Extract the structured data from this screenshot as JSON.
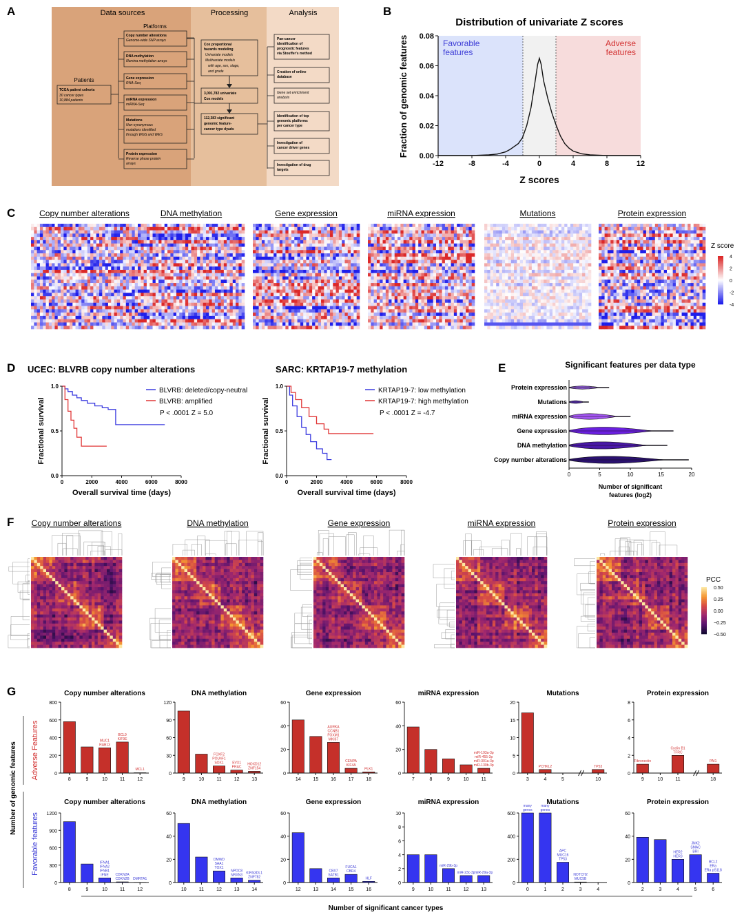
{
  "panel_a": {
    "letter": "A",
    "headers": {
      "data_sources": "Data sources",
      "processing": "Processing",
      "analysis": "Analysis",
      "platforms": "Platforms",
      "patients": "Patients"
    },
    "patients_box": {
      "title": "TCGA patient cohorts",
      "line1": "30 cancer types",
      "line2": "10,884 patients"
    },
    "platforms": [
      {
        "title": "Copy number alterations",
        "sub1": "Genome-wide SNP arrays",
        "sub2": ""
      },
      {
        "title": "DNA methylation",
        "sub1": "Illumina methylation arrays",
        "sub2": ""
      },
      {
        "title": "Gene expression",
        "sub1": "RNA-Seq",
        "sub2": ""
      },
      {
        "title": "miRNA expression",
        "sub1": "miRNA-Seq",
        "sub2": ""
      },
      {
        "title": "Mutations",
        "sub1": "Non-synonymous",
        "sub2": "mutations identified",
        "sub3": "through WGS and WES"
      },
      {
        "title": "Protein expression",
        "sub1": "Reverse phase protein",
        "sub2": "arrays"
      }
    ],
    "processing": {
      "box1": {
        "l1": "Cox proportional",
        "l2": "hazards modeling",
        "l3": "Univariate models",
        "l4": "Multivariate models",
        "l5": "with age, sex, stage,",
        "l6": "and grade"
      },
      "box2": {
        "l1": "3,091,782 univariate",
        "l2": "Cox models"
      },
      "box3": {
        "l1": "112,383 significant",
        "l2": "genomic feature-",
        "l3": "cancer type dyads"
      }
    },
    "analysis": [
      {
        "l1": "Pan-cancer",
        "l2": "identification of",
        "l3": "prognostic features",
        "l4": "via Stouffer's method"
      },
      {
        "l1": "Creation of online",
        "l2": "database"
      },
      {
        "l1": "Gene set enrichment",
        "l2": "analysis"
      },
      {
        "l1": "Identification of top",
        "l2": "genomic platforms",
        "l3": "per cancer type"
      },
      {
        "l1": "Investigation of",
        "l2": "cancer driver genes"
      },
      {
        "l1": "Investigation of drug",
        "l2": "targets"
      }
    ]
  },
  "panel_b": {
    "letter": "B",
    "title": "Distribution of univariate Z scores",
    "xlabel": "Z scores",
    "ylabel": "Fraction of genomic features",
    "favorable": [
      "Favorable",
      "features"
    ],
    "adverse": [
      "Adverse",
      "features"
    ],
    "colors": {
      "favorable_bg": "#dbe3fb",
      "adverse_bg": "#f7dcdc",
      "favorable_text": "#3b3bd6",
      "adverse_text": "#d23030"
    },
    "chart_data": {
      "type": "line",
      "xlim": [
        -12,
        12
      ],
      "ylim": [
        0,
        0.08
      ],
      "xticks": [
        "-12",
        "-8",
        "-4",
        "0",
        "4",
        "8",
        "12"
      ],
      "yticks": [
        "0.00",
        "0.02",
        "0.04",
        "0.06",
        "0.08"
      ],
      "thresholds": [
        -1.96,
        1.96
      ],
      "x": [
        -12,
        -8,
        -6,
        -5,
        -4,
        -3.5,
        -3,
        -2.5,
        -2,
        -1.5,
        -1,
        -0.5,
        -0.2,
        0,
        0.2,
        0.5,
        1,
        1.5,
        2,
        2.5,
        3,
        3.5,
        4,
        5,
        6,
        8,
        12
      ],
      "y": [
        0,
        0,
        0.0005,
        0.001,
        0.0025,
        0.004,
        0.006,
        0.008,
        0.012,
        0.02,
        0.032,
        0.05,
        0.061,
        0.065,
        0.061,
        0.05,
        0.038,
        0.028,
        0.02,
        0.013,
        0.008,
        0.005,
        0.003,
        0.0012,
        0.0005,
        0,
        0
      ]
    }
  },
  "panel_c": {
    "letter": "C",
    "titles": [
      "Copy number alterations",
      "DNA methylation",
      "Gene expression",
      "miRNA expression",
      "Mutations",
      "Protein expression"
    ],
    "legend_title": "Z score",
    "legend_ticks": [
      "4",
      "2",
      "0",
      "-2",
      "-4"
    ]
  },
  "panel_d": {
    "letter": "D",
    "plots": [
      {
        "title": "UCEC: BLVRB copy number alterations",
        "legend": [
          "BLVRB: deleted/copy-neutral",
          "BLVRB: amplified"
        ],
        "stats": "P < .0001      Z = 5.0",
        "chart_data": {
          "type": "line",
          "xlim": [
            0,
            8000
          ],
          "ylim": [
            0,
            1
          ],
          "xticks": [
            "0",
            "2000",
            "4000",
            "6000",
            "8000"
          ],
          "yticks": [
            "0.0",
            "0.5",
            "1.0"
          ],
          "series": [
            {
              "name": "BLVRB: deleted/copy-neutral",
              "color": "#3b3bdf",
              "x": [
                0,
                200,
                400,
                700,
                1000,
                1300,
                1700,
                2200,
                2700,
                3100,
                3600,
                4000,
                5000,
                6900
              ],
              "y": [
                1.0,
                0.97,
                0.94,
                0.9,
                0.87,
                0.84,
                0.81,
                0.78,
                0.76,
                0.74,
                0.57,
                0.57,
                0.57,
                0.57
              ]
            },
            {
              "name": "BLVRB: amplified",
              "color": "#e03535",
              "x": [
                0,
                200,
                400,
                600,
                800,
                1000,
                1300,
                2000,
                3000
              ],
              "y": [
                1.0,
                0.85,
                0.72,
                0.62,
                0.53,
                0.43,
                0.33,
                0.33,
                0.33
              ]
            }
          ]
        }
      },
      {
        "title": "SARC: KRTAP19-7 methylation",
        "legend": [
          "KRTAP19-7: low methylation",
          "KRTAP19-7: high methylation"
        ],
        "stats": "P < .0001      Z = -4.7",
        "chart_data": {
          "type": "line",
          "xlim": [
            0,
            8000
          ],
          "ylim": [
            0,
            1
          ],
          "xticks": [
            "0",
            "2000",
            "4000",
            "6000",
            "8000"
          ],
          "yticks": [
            "0.0",
            "0.5",
            "1.0"
          ],
          "series": [
            {
              "name": "KRTAP19-7: low methylation",
              "color": "#3b3bdf",
              "x": [
                0,
                200,
                400,
                700,
                1000,
                1300,
                1600,
                2000,
                2400,
                2700,
                3000
              ],
              "y": [
                1.0,
                0.9,
                0.78,
                0.66,
                0.54,
                0.46,
                0.38,
                0.3,
                0.25,
                0.18,
                0.18
              ]
            },
            {
              "name": "KRTAP19-7: high methylation",
              "color": "#e03535",
              "x": [
                0,
                300,
                600,
                1000,
                1500,
                2000,
                2500,
                2800,
                3500,
                4500,
                5800
              ],
              "y": [
                1.0,
                0.93,
                0.85,
                0.76,
                0.66,
                0.58,
                0.52,
                0.47,
                0.47,
                0.47,
                0.47
              ]
            }
          ]
        }
      }
    ],
    "ylabel": "Fractional survival",
    "xlabel": "Overall survival time (days)"
  },
  "panel_e": {
    "letter": "E",
    "title": "Significant features per data type",
    "xlabel1": "Number of significant",
    "xlabel2": "features (log2)",
    "chart_data": {
      "type": "violin",
      "xlim": [
        0,
        20
      ],
      "xticks": [
        "0",
        "5",
        "10",
        "15",
        "20"
      ],
      "categories": [
        "Protein expression",
        "Mutations",
        "miRNA expression",
        "Gene expression",
        "DNA methylation",
        "Copy number alterations"
      ],
      "max": [
        6.5,
        3.2,
        10,
        17,
        16,
        19.5
      ],
      "width": [
        0.35,
        0.3,
        0.65,
        0.85,
        0.8,
        0.8
      ],
      "colors": [
        "#8e5bd4",
        "#5a2fb8",
        "#a255f0",
        "#6a1fe0",
        "#4a18a8",
        "#2a1070"
      ]
    }
  },
  "panel_f": {
    "letter": "F",
    "titles": [
      "Copy number alterations",
      "DNA methylation",
      "Gene expression",
      "miRNA expression",
      "Protein expression"
    ],
    "legend_title": "PCC",
    "legend_ticks": [
      "0.50",
      "0.25",
      "0.00",
      "−0.25",
      "−0.50"
    ]
  },
  "panel_g": {
    "letter": "G",
    "ylabel": "Number of genomic features",
    "adverse_label": "Adverse Features",
    "favorable_label": "Favorable features",
    "xlabel": "Number of significant cancer types",
    "adverse": [
      {
        "title": "Copy number alterations",
        "ymax": 800,
        "yticks": [
          "800",
          "600",
          "400",
          "200",
          "0"
        ],
        "categories": [
          "8",
          "9",
          "10",
          "11",
          "12"
        ],
        "values": [
          580,
          295,
          285,
          350,
          4
        ],
        "annotations": [
          [
            "",
            ""
          ],
          [
            ""
          ],
          [
            "MUC1",
            "RAB13"
          ],
          [
            "BCL9",
            "KIF9E"
          ],
          [
            "MCL1"
          ]
        ]
      },
      {
        "title": "DNA methylation",
        "ymax": 120,
        "yticks": [
          "120",
          "90",
          "60",
          "30",
          "0"
        ],
        "categories": [
          "9",
          "10",
          "11",
          "12",
          "13"
        ],
        "values": [
          105,
          32,
          12,
          5,
          3
        ],
        "annotations": [
          [
            ""
          ],
          [
            ""
          ],
          [
            "FOXF2",
            "POU4F1",
            "SOX1"
          ],
          [
            "EVX1",
            "PRAC"
          ],
          [
            "HOXD12",
            "ZNF154"
          ]
        ]
      },
      {
        "title": "Gene expression",
        "ymax": 60,
        "yticks": [
          "60",
          "40",
          "20",
          "0"
        ],
        "categories": [
          "14",
          "15",
          "16",
          "17",
          "18"
        ],
        "values": [
          45,
          31,
          26,
          4,
          1
        ],
        "annotations": [
          [
            ""
          ],
          [
            ""
          ],
          [
            "AURKA",
            "CCNB1",
            "FOXM1",
            "MKI67"
          ],
          [
            "CENPA",
            "KIF4A"
          ],
          [
            "PLK1"
          ]
        ]
      },
      {
        "title": "miRNA expression",
        "ymax": 60,
        "yticks": [
          "60",
          "40",
          "20",
          "0"
        ],
        "categories": [
          "7",
          "8",
          "9",
          "10",
          "11"
        ],
        "values": [
          39,
          20,
          12,
          7,
          4
        ],
        "annotations": [
          [
            ""
          ],
          [
            ""
          ],
          [
            ""
          ],
          [
            ""
          ],
          [
            "miR-193a-3p",
            "miR-455-3p",
            "miR-301a-3p",
            "miR-130b-3p"
          ]
        ]
      },
      {
        "title": "Mutations",
        "ymax": 20,
        "yticks": [
          "20",
          "15",
          "10",
          "5",
          "0"
        ],
        "categories": [
          "3",
          "4",
          "5",
          "10"
        ],
        "values": [
          17,
          1,
          0,
          1
        ],
        "broken": true,
        "annotations": [
          [
            ""
          ],
          [
            "PCHKL2"
          ],
          [
            ""
          ],
          [
            "TP53"
          ]
        ]
      },
      {
        "title": "Protein expression",
        "ymax": 8,
        "yticks": [
          "8",
          "6",
          "4",
          "2",
          "0"
        ],
        "categories": [
          "9",
          "10",
          "11",
          "18"
        ],
        "values": [
          1,
          0,
          2,
          1
        ],
        "broken": true,
        "annotations": [
          [
            "Fibronectin"
          ],
          [
            ""
          ],
          [
            "Cyclin B1",
            "TFRC"
          ],
          [
            "PAI1"
          ]
        ]
      }
    ],
    "favorable": [
      {
        "title": "Copy number alterations",
        "ymax": 1200,
        "yticks": [
          "1200",
          "900",
          "600",
          "300",
          "0"
        ],
        "categories": [
          "8",
          "9",
          "10",
          "11",
          "12"
        ],
        "values": [
          1050,
          320,
          80,
          12,
          4
        ],
        "annotations": [
          [
            ""
          ],
          [
            ""
          ],
          [
            "IFNA1",
            "IFNA2",
            "IFNB1",
            "IFNE"
          ],
          [
            "CDKN2A",
            "CDKN2B"
          ],
          [
            "DMRTA1"
          ]
        ]
      },
      {
        "title": "DNA methylation",
        "ymax": 60,
        "yticks": [
          "60",
          "40",
          "20",
          "0"
        ],
        "categories": [
          "10",
          "11",
          "12",
          "13",
          "14"
        ],
        "values": [
          51,
          22,
          10,
          4,
          2
        ],
        "annotations": [
          [
            ""
          ],
          [
            ""
          ],
          [
            "DMWD",
            "SAA1",
            "TOX1"
          ],
          [
            "NPDC8",
            "NRXN3"
          ],
          [
            "KIRS3DL1",
            "ZNF782"
          ]
        ]
      },
      {
        "title": "Gene expression",
        "ymax": 60,
        "yticks": [
          "60",
          "40",
          "20",
          "0"
        ],
        "categories": [
          "12",
          "13",
          "14",
          "15",
          "16"
        ],
        "values": [
          43,
          12,
          4,
          7,
          1
        ],
        "annotations": [
          [
            ""
          ],
          [
            ""
          ],
          [
            "CBX7",
            "SATB1"
          ],
          [
            "FUCA1",
            "CBR4"
          ],
          [
            "HLF"
          ]
        ]
      },
      {
        "title": "miRNA expression",
        "ymax": 10,
        "yticks": [
          "10",
          "8",
          "6",
          "4",
          "2",
          "0"
        ],
        "categories": [
          "9",
          "10",
          "11",
          "12",
          "13"
        ],
        "values": [
          4,
          4,
          2,
          1,
          1
        ],
        "annotations": [
          [
            ""
          ],
          [
            ""
          ],
          [
            "miR-29b-3p"
          ],
          [
            "miR-23c-3p"
          ],
          [
            "miR-29a-3p"
          ]
        ]
      },
      {
        "title": "Mutations",
        "ymax": 600,
        "yticks": [
          "600",
          "400",
          "200",
          "0"
        ],
        "categories": [
          "0",
          "1",
          "2",
          "3",
          "4"
        ],
        "values": [
          600,
          600,
          175,
          5,
          0
        ],
        "annotations": [
          [
            "many",
            "genes"
          ],
          [
            "many",
            "genes"
          ],
          [
            "APC",
            "MUC16",
            "TP53"
          ],
          [
            "NOTCH2",
            "MUC5B"
          ],
          [
            ""
          ]
        ]
      },
      {
        "title": "Protein expression",
        "ymax": 60,
        "yticks": [
          "60",
          "40",
          "20",
          "0"
        ],
        "categories": [
          "2",
          "3",
          "4",
          "5",
          "6"
        ],
        "values": [
          39,
          37,
          20,
          24,
          8
        ],
        "annotations": [
          [
            ""
          ],
          [
            ""
          ],
          [
            "HER2",
            "HER3"
          ],
          [
            "JNK2",
            "SMAC",
            "BRI"
          ],
          [
            "BCL2",
            "ERa",
            "ERa pS118"
          ]
        ]
      }
    ]
  }
}
